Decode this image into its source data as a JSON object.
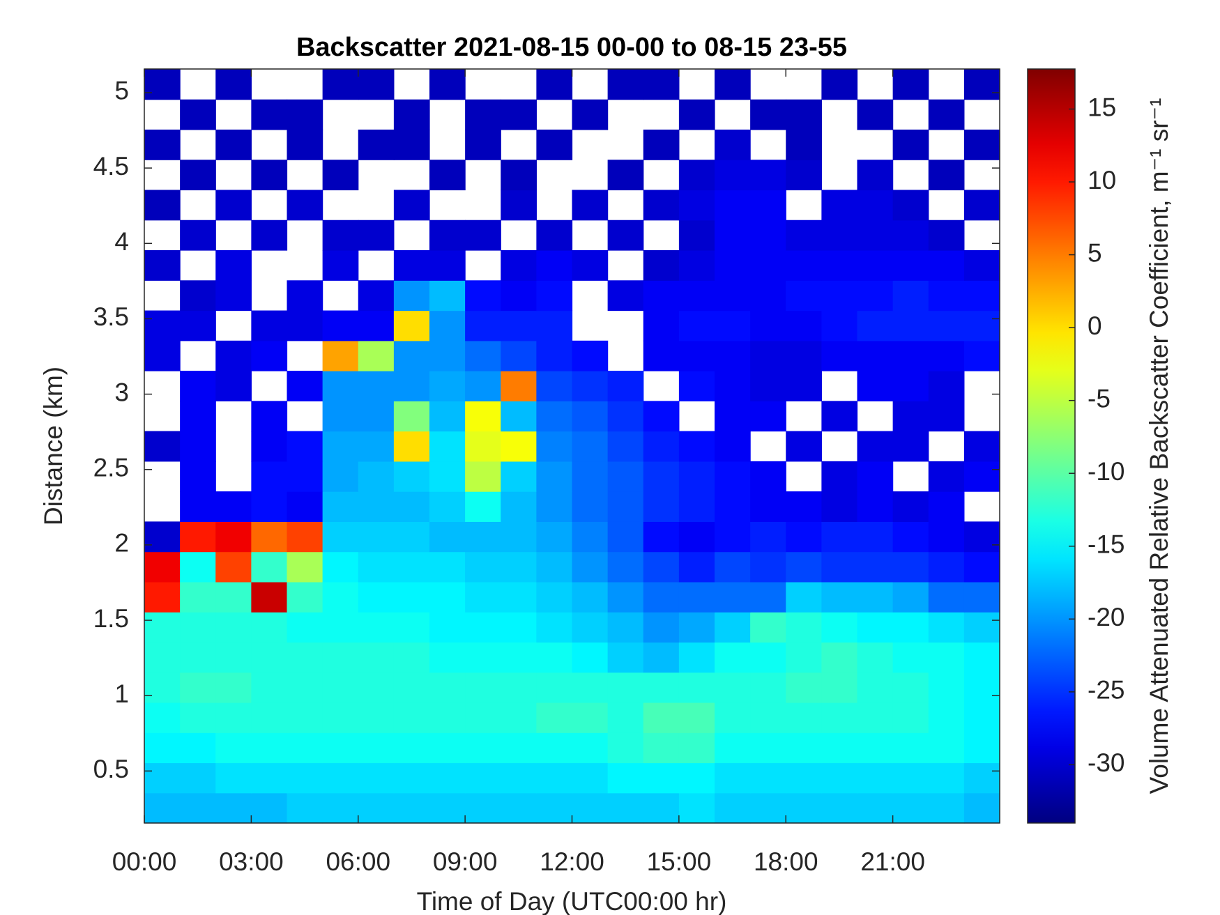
{
  "chart_data": {
    "type": "heatmap",
    "title": "Backscatter 2021-08-15 00-00 to 08-15 23-55",
    "x_label": "Time of Day (UTC00:00 hr)",
    "y_label": "Distance (km)",
    "colorbar_label": "Volume Attenuated Relative Backscatter Coefficient, m⁻¹ sr⁻¹",
    "colormap": "jet",
    "x": [
      0.5,
      1.5,
      2.5,
      3.5,
      4.5,
      5.5,
      6.5,
      7.5,
      8.5,
      9.5,
      10.5,
      11.5,
      12.5,
      13.5,
      14.5,
      15.5,
      16.5,
      17.5,
      18.5,
      19.5,
      20.5,
      21.5,
      22.5,
      23.5
    ],
    "y": [
      0.255,
      0.455,
      0.655,
      0.855,
      1.055,
      1.255,
      1.455,
      1.655,
      1.855,
      2.055,
      2.255,
      2.455,
      2.655,
      2.855,
      3.055,
      3.255,
      3.455,
      3.655,
      3.855,
      4.055,
      4.255,
      4.455,
      4.655,
      4.855,
      5.055
    ],
    "values": [
      [
        -18,
        -18,
        -18,
        -18,
        -17,
        -17,
        -17,
        -17,
        -17,
        -17,
        -17,
        -17,
        -17,
        -17,
        -17,
        -16,
        -17,
        -17,
        -17,
        -17,
        -17,
        -17,
        -17,
        -18
      ],
      [
        -17,
        -17,
        -16,
        -16,
        -16,
        -16,
        -16,
        -16,
        -16,
        -16,
        -16,
        -16,
        -16,
        -15,
        -15,
        -15,
        -16,
        -16,
        -16,
        -16,
        -16,
        -16,
        -16,
        -17
      ],
      [
        -15,
        -15,
        -14,
        -14,
        -14,
        -14,
        -14,
        -14,
        -14,
        -14,
        -14,
        -14,
        -14,
        -13,
        -12,
        -12,
        -14,
        -14,
        -14,
        -14,
        -14,
        -14,
        -14,
        -15
      ],
      [
        -14,
        -13,
        -13,
        -13,
        -13,
        -13,
        -13,
        -13,
        -13,
        -13,
        -13,
        -12,
        -12,
        -13,
        -11,
        -11,
        -13,
        -13,
        -13,
        -13,
        -13,
        -13,
        -14,
        -15
      ],
      [
        -13,
        -12,
        -12,
        -13,
        -13,
        -13,
        -13,
        -13,
        -13,
        -13,
        -13,
        -13,
        -13,
        -13,
        -13,
        -13,
        -13,
        -13,
        -12,
        -12,
        -13,
        -13,
        -14,
        -15
      ],
      [
        -13,
        -13,
        -13,
        -13,
        -13,
        -13,
        -13,
        -13,
        -14,
        -14,
        -14,
        -14,
        -15,
        -17,
        -18,
        -16,
        -14,
        -14,
        -13,
        -12,
        -13,
        -14,
        -14,
        -15
      ],
      [
        -13,
        -13,
        -13,
        -13,
        -14,
        -14,
        -14,
        -14,
        -15,
        -15,
        -15,
        -16,
        -17,
        -18,
        -20,
        -19,
        -17,
        -12,
        -13,
        -14,
        -15,
        -15,
        -16,
        -17
      ],
      [
        10,
        -12,
        -12,
        14,
        -12,
        -14,
        -15,
        -15,
        -15,
        -16,
        -16,
        -17,
        -18,
        -20,
        -22,
        -22,
        -22,
        -22,
        -17,
        -18,
        -18,
        -19,
        -22,
        -22
      ],
      [
        12,
        -14,
        8,
        -12,
        -6,
        -15,
        -16,
        -16,
        -16,
        -17,
        -17,
        -18,
        -20,
        -22,
        -24,
        -26,
        -24,
        -25,
        -24,
        -25,
        -25,
        -25,
        -26,
        -27
      ],
      [
        -30,
        10,
        12,
        6,
        8,
        -17,
        -17,
        -17,
        -18,
        -18,
        -18,
        -19,
        -21,
        -23,
        -27,
        -28,
        -27,
        -26,
        -27,
        -26,
        -26,
        -27,
        -28,
        -29
      ],
      [
        null,
        -28,
        -28,
        -27,
        -28,
        -18,
        -18,
        -18,
        -17,
        -14,
        -18,
        -20,
        -22,
        -23,
        -25,
        -26,
        -27,
        -28,
        -28,
        -29,
        -28,
        -29,
        -28,
        null
      ],
      [
        null,
        -28,
        null,
        -27,
        -27,
        -19,
        -18,
        -17,
        -16,
        -5,
        -17,
        -20,
        -22,
        -23,
        -25,
        -26,
        -27,
        -28,
        null,
        -29,
        -28,
        null,
        -29,
        -28
      ],
      [
        -30,
        -28,
        null,
        -28,
        -27,
        -19,
        -19,
        0,
        -16,
        -3,
        -2,
        -21,
        -22,
        -24,
        -26,
        -27,
        -28,
        null,
        -29,
        null,
        -29,
        -29,
        null,
        -29
      ],
      [
        null,
        -28,
        null,
        -28,
        null,
        -20,
        -20,
        -8,
        -18,
        -2,
        -18,
        -22,
        -23,
        -25,
        -27,
        null,
        -28,
        -28,
        null,
        -29,
        null,
        -29,
        -29,
        null
      ],
      [
        null,
        -28,
        -29,
        null,
        -28,
        -20,
        -20,
        -20,
        -19,
        -20,
        5,
        -24,
        -25,
        -26,
        null,
        -27,
        -28,
        -29,
        -29,
        null,
        -28,
        -28,
        -29,
        null
      ],
      [
        -29,
        null,
        -29,
        -28,
        null,
        3,
        -6,
        -20,
        -20,
        -22,
        -24,
        -26,
        -27,
        null,
        -28,
        -28,
        -28,
        -29,
        -29,
        -28,
        -28,
        -28,
        -28,
        -27
      ],
      [
        -29,
        -29,
        null,
        -29,
        -29,
        -28,
        -28,
        0,
        -20,
        -26,
        -26,
        -26,
        null,
        null,
        -28,
        -27,
        -27,
        -28,
        -28,
        -27,
        -26,
        -26,
        -26,
        -26
      ],
      [
        null,
        -30,
        -29,
        null,
        -29,
        null,
        -29,
        -20,
        -18,
        -27,
        -28,
        -27,
        null,
        -29,
        -28,
        -28,
        -28,
        -28,
        -27,
        -27,
        -27,
        -26,
        -27,
        -27
      ],
      [
        -30,
        null,
        -29,
        null,
        null,
        -29,
        null,
        -29,
        -29,
        null,
        -29,
        -28,
        -29,
        null,
        -30,
        -29,
        -28,
        -28,
        -28,
        -28,
        -28,
        -28,
        -28,
        -29
      ],
      [
        null,
        -30,
        null,
        -30,
        null,
        -30,
        -30,
        null,
        -30,
        -30,
        null,
        -30,
        null,
        -30,
        null,
        -30,
        -28,
        -28,
        -29,
        -29,
        -29,
        -29,
        -30,
        null
      ],
      [
        -31,
        null,
        -30,
        null,
        -30,
        null,
        null,
        -30,
        null,
        null,
        -30,
        null,
        -30,
        null,
        -30,
        -29,
        -28,
        -28,
        null,
        -29,
        -29,
        -30,
        null,
        -30
      ],
      [
        null,
        -31,
        null,
        -31,
        null,
        -31,
        null,
        null,
        -31,
        null,
        -31,
        null,
        null,
        -31,
        null,
        -30,
        -29,
        -29,
        -30,
        null,
        -30,
        null,
        -31,
        null
      ],
      [
        -31,
        null,
        -31,
        null,
        -31,
        null,
        -31,
        -31,
        null,
        -31,
        null,
        -31,
        null,
        null,
        -31,
        null,
        -30,
        null,
        -31,
        null,
        null,
        -31,
        null,
        -31
      ],
      [
        null,
        -31,
        null,
        -31,
        -31,
        null,
        null,
        -31,
        null,
        -31,
        -31,
        null,
        -31,
        null,
        null,
        -31,
        null,
        -31,
        -31,
        null,
        -31,
        null,
        -31,
        null
      ],
      [
        -31,
        null,
        -31,
        null,
        null,
        -31,
        -31,
        null,
        -31,
        null,
        null,
        -31,
        null,
        -31,
        -31,
        null,
        -31,
        null,
        null,
        -31,
        null,
        -31,
        null,
        -31
      ]
    ],
    "xlim": [
      0,
      24
    ],
    "xticks": [
      {
        "value": 0,
        "label": "00:00"
      },
      {
        "value": 3,
        "label": "03:00"
      },
      {
        "value": 6,
        "label": "06:00"
      },
      {
        "value": 9,
        "label": "09:00"
      },
      {
        "value": 12,
        "label": "12:00"
      },
      {
        "value": 15,
        "label": "15:00"
      },
      {
        "value": 18,
        "label": "18:00"
      },
      {
        "value": 21,
        "label": "21:00"
      }
    ],
    "ylim": [
      0.155,
      5.157
    ],
    "yticks": [
      0.5,
      1,
      1.5,
      2,
      2.5,
      3,
      3.5,
      4,
      4.5,
      5
    ],
    "clim": [
      -34,
      17.75
    ],
    "cticks": [
      -30,
      -25,
      -20,
      -15,
      -10,
      -5,
      0,
      5,
      10,
      15
    ],
    "grid": false
  }
}
